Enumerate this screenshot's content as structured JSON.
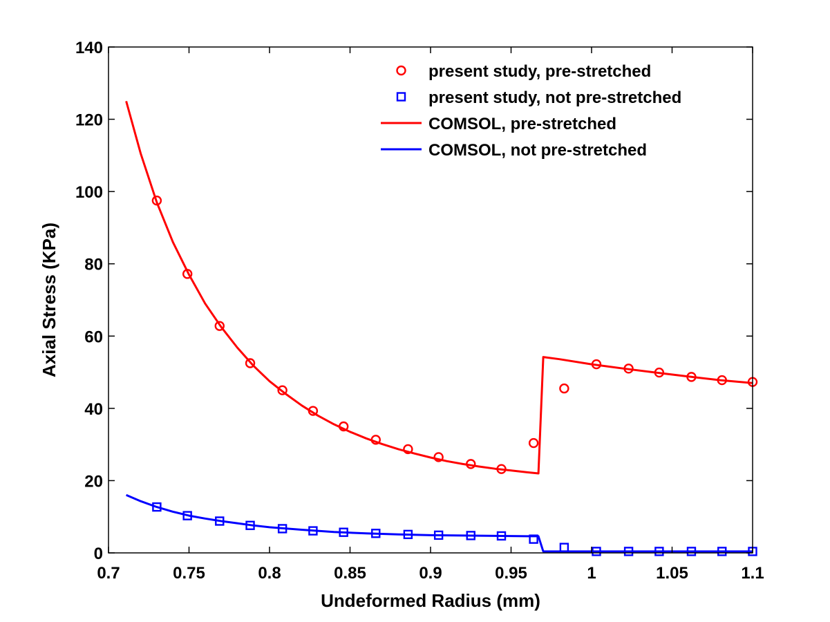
{
  "chart_data": {
    "type": "line",
    "title": "",
    "xlabel": "Undeformed Radius (mm)",
    "ylabel": "Axial Stress (KPa)",
    "xlim": [
      0.7,
      1.1
    ],
    "ylim": [
      0,
      140
    ],
    "xticks": [
      0.7,
      0.75,
      0.8,
      0.85,
      0.9,
      0.95,
      1,
      1.05,
      1.1
    ],
    "yticks": [
      0,
      20,
      40,
      60,
      80,
      100,
      120,
      140
    ],
    "xtick_labels": [
      "0.7",
      "0.75",
      "0.8",
      "0.85",
      "0.9",
      "0.95",
      "1",
      "1.05",
      "1.1"
    ],
    "ytick_labels": [
      "0",
      "20",
      "40",
      "60",
      "80",
      "100",
      "120",
      "140"
    ],
    "grid": false,
    "legend_position": "top-right",
    "series": [
      {
        "name": "present study, pre-stretched",
        "kind": "marker",
        "marker": "circle",
        "color": "#ff0000",
        "x": [
          0.73,
          0.749,
          0.769,
          0.788,
          0.808,
          0.827,
          0.846,
          0.866,
          0.886,
          0.905,
          0.925,
          0.944,
          0.964,
          0.983,
          1.003,
          1.023,
          1.042,
          1.062,
          1.081,
          1.1
        ],
        "y": [
          97.5,
          77.2,
          62.8,
          52.5,
          45.0,
          39.3,
          35.0,
          31.3,
          28.7,
          26.5,
          24.6,
          23.2,
          30.4,
          45.5,
          52.2,
          51.0,
          49.9,
          48.7,
          47.8,
          47.3
        ]
      },
      {
        "name": "present study, not pre-stretched",
        "kind": "marker",
        "marker": "square",
        "color": "#0000ff",
        "x": [
          0.73,
          0.749,
          0.769,
          0.788,
          0.808,
          0.827,
          0.846,
          0.866,
          0.886,
          0.905,
          0.925,
          0.944,
          0.964,
          0.983,
          1.003,
          1.023,
          1.042,
          1.062,
          1.081,
          1.1
        ],
        "y": [
          12.7,
          10.3,
          8.8,
          7.6,
          6.7,
          6.1,
          5.7,
          5.4,
          5.1,
          4.9,
          4.8,
          4.7,
          3.8,
          1.5,
          0.4,
          0.4,
          0.4,
          0.4,
          0.4,
          0.4
        ]
      },
      {
        "name": "COMSOL, pre-stretched",
        "kind": "line",
        "color": "#ff0000",
        "x": [
          0.711,
          0.72,
          0.73,
          0.74,
          0.75,
          0.76,
          0.77,
          0.78,
          0.79,
          0.8,
          0.81,
          0.82,
          0.83,
          0.84,
          0.85,
          0.86,
          0.87,
          0.88,
          0.89,
          0.9,
          0.91,
          0.92,
          0.93,
          0.94,
          0.95,
          0.96,
          0.967,
          0.97,
          0.98,
          1.0,
          1.02,
          1.04,
          1.06,
          1.08,
          1.1
        ],
        "y": [
          125.0,
          110.5,
          97.0,
          86.0,
          77.0,
          69.0,
          62.5,
          56.8,
          51.8,
          47.5,
          44.0,
          40.8,
          38.0,
          35.6,
          33.5,
          31.7,
          30.1,
          28.7,
          27.5,
          26.4,
          25.4,
          24.6,
          23.9,
          23.3,
          22.8,
          22.3,
          22.0,
          54.2,
          53.6,
          52.2,
          51.0,
          49.9,
          48.8,
          47.8,
          47.0
        ]
      },
      {
        "name": "COMSOL, not pre-stretched",
        "kind": "line",
        "color": "#0000ff",
        "x": [
          0.711,
          0.72,
          0.73,
          0.74,
          0.75,
          0.76,
          0.77,
          0.78,
          0.79,
          0.8,
          0.82,
          0.84,
          0.86,
          0.88,
          0.9,
          0.92,
          0.94,
          0.96,
          0.967,
          0.97,
          1.0,
          1.05,
          1.1
        ],
        "y": [
          16.0,
          14.3,
          12.7,
          11.4,
          10.3,
          9.5,
          8.8,
          8.2,
          7.6,
          7.1,
          6.4,
          5.8,
          5.4,
          5.1,
          4.9,
          4.8,
          4.7,
          4.6,
          4.6,
          0.4,
          0.4,
          0.4,
          0.4
        ]
      }
    ]
  }
}
